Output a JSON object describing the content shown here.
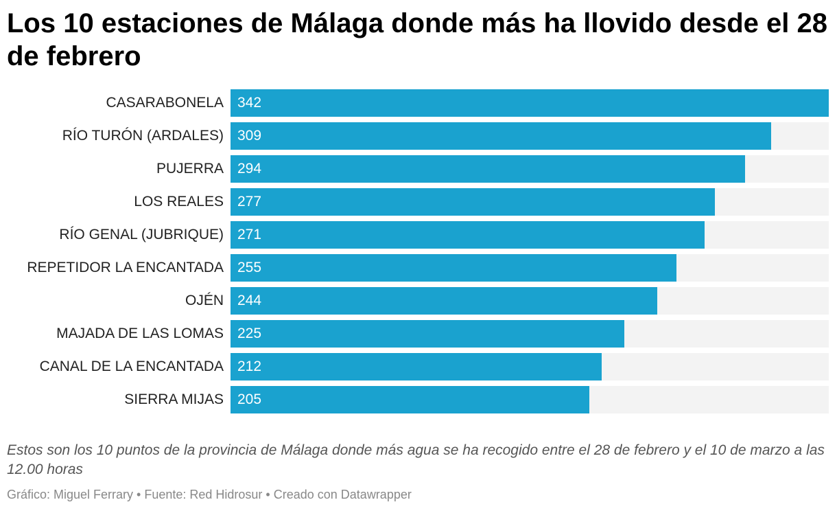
{
  "header": {
    "title": "Los 10 estaciones de Málaga donde más ha llovido desde el 28 de febrero"
  },
  "chart_data": {
    "type": "bar",
    "orientation": "horizontal",
    "title": "Los 10 estaciones de Málaga donde más ha llovido desde el 28 de febrero",
    "categories": [
      "CASARABONELA",
      "RÍO TURÓN (ARDALES)",
      "PUJERRA",
      "LOS REALES",
      "RÍO GENAL (JUBRIQUE)",
      "REPETIDOR LA ENCANTADA",
      "OJÉN",
      "MAJADA DE LAS LOMAS",
      "CANAL DE LA ENCANTADA",
      "SIERRA MIJAS"
    ],
    "values": [
      342,
      309,
      294,
      277,
      271,
      255,
      244,
      225,
      212,
      205
    ],
    "xlim": [
      0,
      342
    ],
    "xlabel": "",
    "ylabel": "",
    "grid": false,
    "bar_color": "#1aa2cf",
    "track_color": "#f3f3f3"
  },
  "notes": {
    "description": "Estos son los 10 puntos de la provincia de Málaga donde más agua se ha recogido entre el 28 de febrero y el 10 de marzo a las 12.00 horas",
    "credit": "Gráfico: Miguel Ferrary • Fuente: Red Hidrosur • Creado con Datawrapper"
  }
}
